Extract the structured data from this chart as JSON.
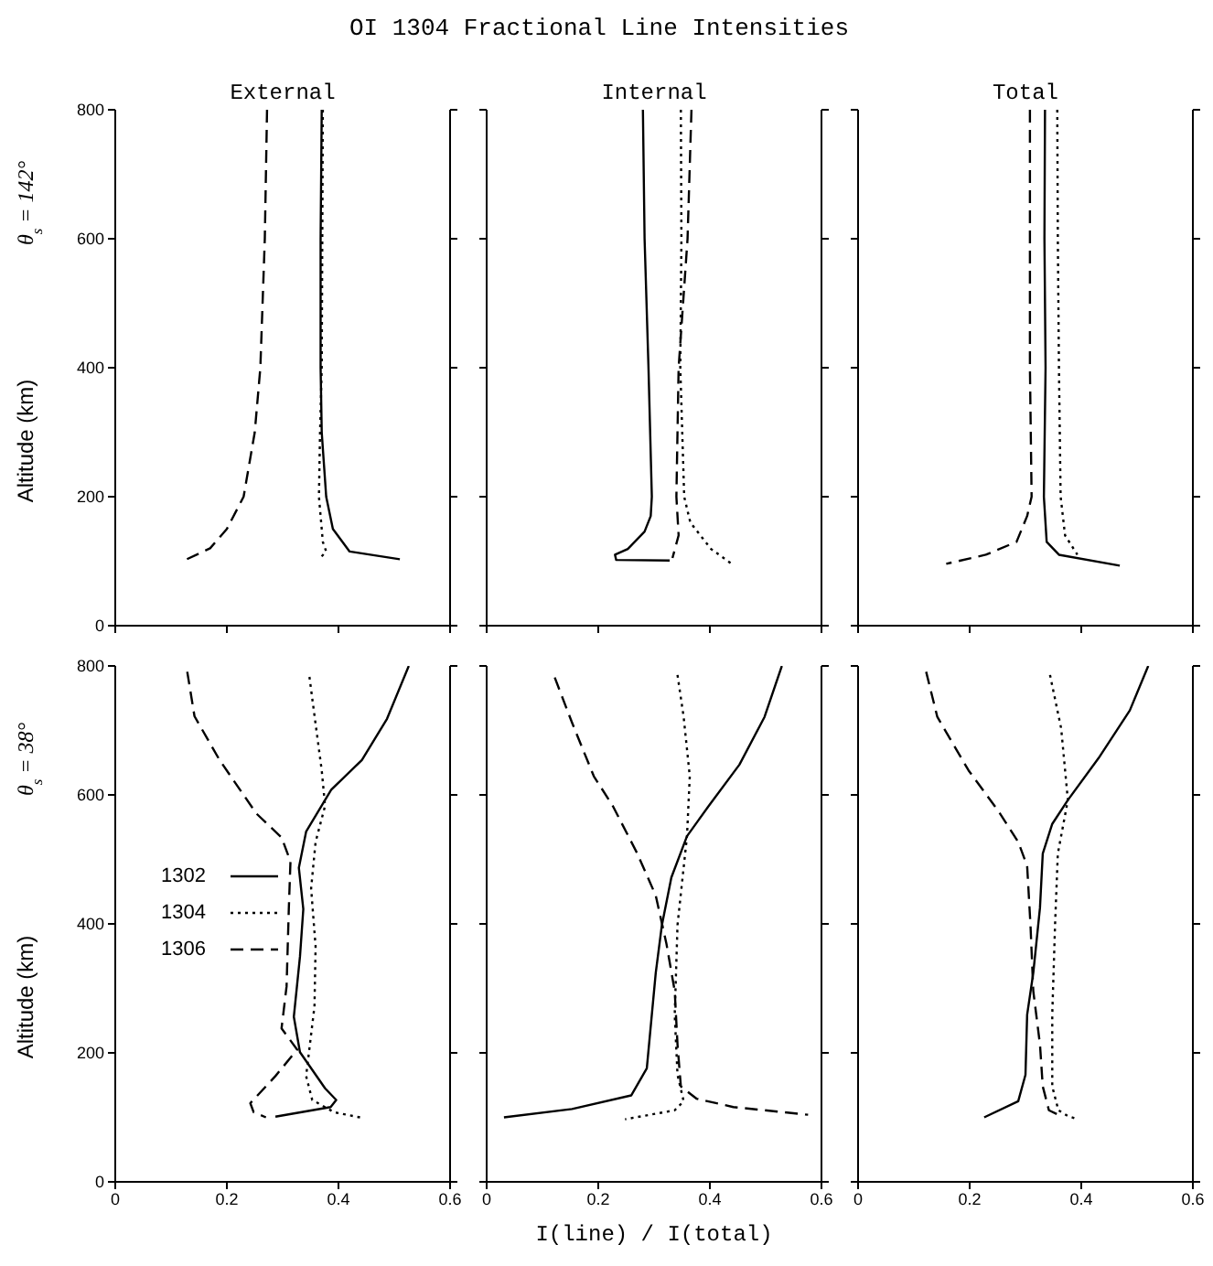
{
  "chart_data": [
    {
      "type": "line",
      "title": "External",
      "ylabel": "Altitude (km)",
      "annotations": [
        "OI 1304  Fractional Line Intensities",
        "θ$_{s}$ = 142°"
      ],
      "xlim": [
        0,
        0.6
      ],
      "xticks": [
        0,
        0.2,
        0.4,
        0.6
      ],
      "ylim": [
        0,
        800
      ],
      "yticks": [
        0,
        200,
        400,
        600,
        800
      ],
      "tick_labels": "y",
      "marker": "none",
      "series": [
        {
          "color": "#000000",
          "line_style": "solid",
          "x": [
            0.37,
            0.368,
            0.368,
            0.37,
            0.378,
            0.39,
            0.42,
            0.51
          ],
          "values": [
            800,
            600,
            400,
            300,
            200,
            150,
            115,
            103
          ]
        },
        {
          "color": "#000000",
          "line_style": "dotted",
          "x": [
            0.372,
            0.371,
            0.37,
            0.367,
            0.365,
            0.372,
            0.378,
            0.365
          ],
          "values": [
            800,
            600,
            400,
            300,
            200,
            130,
            115,
            103
          ]
        },
        {
          "color": "#000000",
          "line_style": "dashed",
          "x": [
            0.272,
            0.268,
            0.26,
            0.25,
            0.23,
            0.2,
            0.17,
            0.128
          ],
          "values": [
            800,
            600,
            400,
            300,
            200,
            150,
            120,
            103
          ]
        }
      ]
    },
    {
      "type": "line",
      "title": "Internal",
      "xlim": [
        0,
        0.6
      ],
      "xticks": [
        0,
        0.2,
        0.4,
        0.6
      ],
      "ylim": [
        0,
        800
      ],
      "yticks": [
        0,
        200,
        400,
        600,
        800
      ],
      "tick_labels": false,
      "marker": "none",
      "series": [
        {
          "color": "#000000",
          "line_style": "solid",
          "x": [
            0.28,
            0.283,
            0.29,
            0.296,
            0.294,
            0.283,
            0.253,
            0.23,
            0.232,
            0.328
          ],
          "values": [
            800,
            600,
            400,
            200,
            170,
            146,
            119,
            110,
            102,
            101
          ]
        },
        {
          "color": "#000000",
          "line_style": "dotted",
          "x": [
            0.348,
            0.349,
            0.347,
            0.354,
            0.365,
            0.402,
            0.439
          ],
          "values": [
            800,
            600,
            400,
            200,
            160,
            119,
            96
          ]
        },
        {
          "color": "#000000",
          "line_style": "dashed",
          "x": [
            0.367,
            0.36,
            0.344,
            0.34,
            0.344,
            0.333
          ],
          "values": [
            800,
            600,
            400,
            200,
            140,
            105
          ]
        }
      ]
    },
    {
      "type": "line",
      "title": "Total",
      "xlim": [
        0,
        0.6
      ],
      "xticks": [
        0,
        0.2,
        0.4,
        0.6
      ],
      "ylim": [
        0,
        800
      ],
      "yticks": [
        0,
        200,
        400,
        600,
        800
      ],
      "tick_labels": false,
      "marker": "none",
      "series": [
        {
          "color": "#000000",
          "line_style": "solid",
          "x": [
            0.335,
            0.334,
            0.336,
            0.333,
            0.338,
            0.36,
            0.469
          ],
          "values": [
            800,
            600,
            400,
            200,
            130,
            110,
            93
          ]
        },
        {
          "color": "#000000",
          "line_style": "dotted",
          "x": [
            0.357,
            0.358,
            0.36,
            0.363,
            0.371,
            0.393
          ],
          "values": [
            800,
            600,
            400,
            200,
            140,
            110
          ]
        },
        {
          "color": "#000000",
          "line_style": "dashed",
          "x": [
            0.308,
            0.308,
            0.308,
            0.311,
            0.303,
            0.284,
            0.229,
            0.158
          ],
          "values": [
            800,
            600,
            400,
            200,
            170,
            130,
            110,
            96
          ]
        }
      ]
    },
    {
      "type": "line",
      "ylabel": "Altitude (km)",
      "annotations": [
        "θ$_{s}$ = 38°"
      ],
      "xlim": [
        0,
        0.6
      ],
      "xticks": [
        0,
        0.2,
        0.4,
        0.6
      ],
      "ylim": [
        0,
        800
      ],
      "yticks": [
        0,
        200,
        400,
        600,
        800
      ],
      "legend": "left",
      "marker": "none",
      "series": [
        {
          "name": "1302",
          "color": "#000000",
          "line_style": "solid",
          "x": [
            0.526,
            0.487,
            0.442,
            0.387,
            0.342,
            0.329,
            0.337,
            0.331,
            0.32,
            0.331,
            0.376,
            0.396,
            0.386,
            0.287
          ],
          "values": [
            800,
            718,
            654,
            608,
            543,
            487,
            423,
            349,
            256,
            201,
            145,
            127,
            116,
            101
          ]
        },
        {
          "name": "1304",
          "color": "#000000",
          "line_style": "dotted",
          "x": [
            0.348,
            0.359,
            0.37,
            0.376,
            0.359,
            0.351,
            0.359,
            0.357,
            0.342,
            0.353,
            0.392,
            0.444
          ],
          "values": [
            783,
            710,
            638,
            583,
            527,
            455,
            365,
            272,
            164,
            127,
            108,
            99
          ]
        },
        {
          "name": "1306",
          "color": "#000000",
          "line_style": "dashed",
          "x": [
            0.129,
            0.142,
            0.187,
            0.253,
            0.298,
            0.314,
            0.311,
            0.307,
            0.298,
            0.326,
            0.287,
            0.242,
            0.248,
            0.27
          ],
          "values": [
            791,
            722,
            654,
            571,
            534,
            497,
            423,
            303,
            238,
            205,
            164,
            122,
            108,
            100
          ]
        }
      ]
    },
    {
      "type": "line",
      "xlabel": "I(line) / I(total)",
      "xlim": [
        0,
        0.6
      ],
      "xticks": [
        0,
        0.2,
        0.4,
        0.6
      ],
      "ylim": [
        0,
        800
      ],
      "yticks": [
        0,
        200,
        400,
        600,
        800
      ],
      "tick_labels": "x",
      "marker": "none",
      "series": [
        {
          "color": "#000000",
          "line_style": "solid",
          "x": [
            0.529,
            0.498,
            0.453,
            0.398,
            0.359,
            0.331,
            0.314,
            0.303,
            0.287,
            0.259,
            0.153,
            0.031
          ],
          "values": [
            800,
            721,
            647,
            583,
            536,
            472,
            398,
            324,
            176,
            134,
            113,
            100
          ]
        },
        {
          "color": "#000000",
          "line_style": "dotted",
          "x": [
            0.342,
            0.353,
            0.364,
            0.359,
            0.342,
            0.337,
            0.342,
            0.353,
            0.337,
            0.248
          ],
          "values": [
            786,
            721,
            629,
            536,
            398,
            259,
            166,
            125,
            111,
            97
          ]
        },
        {
          "color": "#000000",
          "line_style": "dashed",
          "x": [
            0.122,
            0.153,
            0.192,
            0.226,
            0.27,
            0.303,
            0.322,
            0.337,
            0.342,
            0.348,
            0.376,
            0.442,
            0.576
          ],
          "values": [
            782,
            712,
            629,
            583,
            509,
            444,
            370,
            296,
            213,
            148,
            129,
            116,
            104
          ]
        }
      ]
    },
    {
      "type": "line",
      "xlim": [
        0,
        0.6
      ],
      "xticks": [
        0,
        0.2,
        0.4,
        0.6
      ],
      "ylim": [
        0,
        800
      ],
      "yticks": [
        0,
        200,
        400,
        600,
        800
      ],
      "tick_labels": "x",
      "marker": "none",
      "series": [
        {
          "color": "#000000",
          "line_style": "solid",
          "x": [
            0.52,
            0.487,
            0.431,
            0.376,
            0.348,
            0.331,
            0.326,
            0.314,
            0.303,
            0.3,
            0.287,
            0.226
          ],
          "values": [
            800,
            731,
            657,
            592,
            555,
            509,
            425,
            324,
            259,
            166,
            125,
            100
          ]
        },
        {
          "color": "#000000",
          "line_style": "dotted",
          "x": [
            0.344,
            0.364,
            0.376,
            0.358,
            0.353,
            0.348,
            0.348,
            0.359,
            0.376,
            0.39
          ],
          "values": [
            786,
            703,
            592,
            509,
            398,
            259,
            148,
            111,
            102,
            98
          ]
        },
        {
          "color": "#000000",
          "line_style": "dashed",
          "x": [
            0.122,
            0.142,
            0.198,
            0.253,
            0.287,
            0.303,
            0.309,
            0.314,
            0.326,
            0.331,
            0.342,
            0.364
          ],
          "values": [
            791,
            721,
            638,
            573,
            527,
            490,
            398,
            296,
            213,
            148,
            111,
            102
          ]
        }
      ]
    }
  ]
}
